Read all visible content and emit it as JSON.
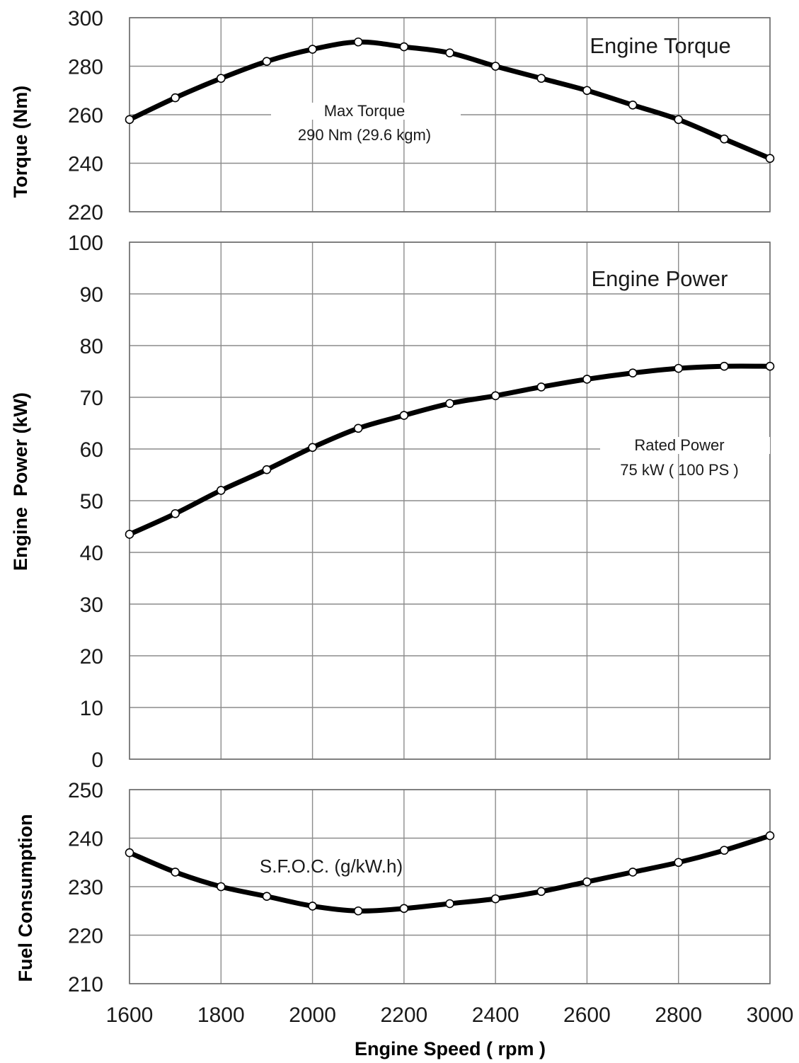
{
  "chart_data": [
    {
      "type": "line",
      "id": "torque",
      "title": "Engine Torque",
      "ylabel": "Torque (Nm)",
      "xlabel": "",
      "ylim": [
        220,
        300
      ],
      "yticks": [
        220,
        240,
        260,
        280,
        300
      ],
      "x": [
        1600,
        1700,
        1800,
        1900,
        2000,
        2100,
        2200,
        2300,
        2400,
        2500,
        2600,
        2700,
        2800,
        2900,
        3000
      ],
      "series": [
        {
          "values": [
            258,
            267,
            275,
            282,
            287,
            290,
            288,
            285.5,
            280,
            275,
            270,
            264,
            258,
            250,
            242
          ]
        }
      ],
      "annotation": {
        "line1": "Max Torque",
        "line2": "290 Nm  (29.6 kgm)"
      },
      "grid": true
    },
    {
      "type": "line",
      "id": "power",
      "title": "Engine Power",
      "ylabel": "Engine  Power (kW)",
      "xlabel": "",
      "ylim": [
        0,
        100
      ],
      "yticks": [
        0,
        10,
        20,
        30,
        40,
        50,
        60,
        70,
        80,
        90,
        100
      ],
      "x": [
        1600,
        1700,
        1800,
        1900,
        2000,
        2100,
        2200,
        2300,
        2400,
        2500,
        2600,
        2700,
        2800,
        2900,
        3000
      ],
      "series": [
        {
          "values": [
            43.5,
            47.5,
            52,
            56,
            60.3,
            64,
            66.5,
            68.8,
            70.3,
            72,
            73.5,
            74.7,
            75.6,
            76,
            76
          ]
        }
      ],
      "annotation": {
        "line1": "Rated Power",
        "line2": "75 kW ( 100 PS )"
      },
      "grid": true
    },
    {
      "type": "line",
      "id": "fuel",
      "title": "",
      "ylabel": "Fuel Consumption",
      "xlabel": "Engine Speed ( rpm )",
      "ylim": [
        210,
        250
      ],
      "yticks": [
        210,
        220,
        230,
        240,
        250
      ],
      "x": [
        1600,
        1700,
        1800,
        1900,
        2000,
        2100,
        2200,
        2300,
        2400,
        2500,
        2600,
        2700,
        2800,
        2900,
        3000
      ],
      "xticks": [
        1600,
        1800,
        2000,
        2200,
        2400,
        2600,
        2800,
        3000
      ],
      "series": [
        {
          "values": [
            237,
            233,
            230,
            228,
            226,
            225,
            225.5,
            226.5,
            227.5,
            229,
            231,
            233,
            235,
            237.5,
            240.5
          ]
        }
      ],
      "annotation": {
        "line1": "S.F.O.C.  (g/kW.h)"
      },
      "grid": true
    }
  ]
}
